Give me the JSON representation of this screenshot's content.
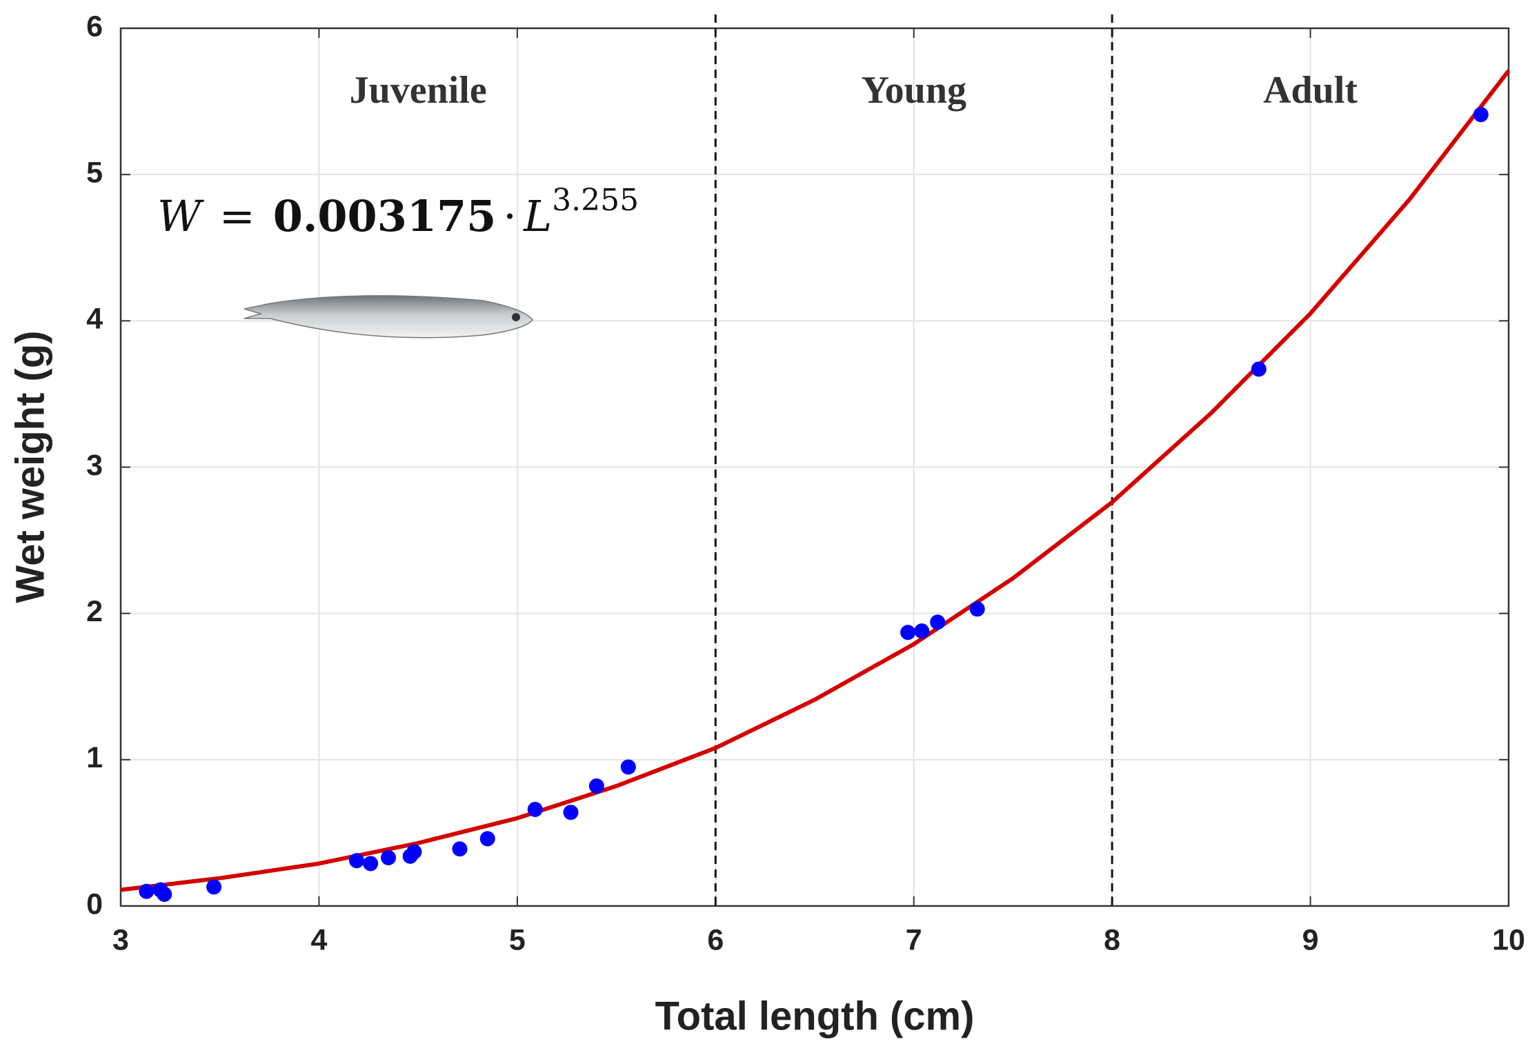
{
  "chart_data": {
    "type": "scatter",
    "x_label": "Total length (cm)",
    "y_label": "Wet weight (g)",
    "xlim": [
      3,
      10
    ],
    "xticks": [
      3,
      4,
      5,
      6,
      7,
      8,
      9,
      10
    ],
    "ylim": [
      0,
      6
    ],
    "yticks": [
      0,
      1,
      2,
      3,
      4,
      5,
      6
    ],
    "grid": true,
    "equation": {
      "lhs": "W",
      "eq": "=",
      "coef": "0.003175",
      "dot": "·",
      "var": "L",
      "exp": "3.255"
    },
    "dividers": [
      6,
      8
    ],
    "regions": [
      "Juvenile",
      "Young",
      "Adult"
    ],
    "series": [
      {
        "type": "scatter",
        "color": "#0000ff",
        "x": [
          3.13,
          3.2,
          3.22,
          3.47,
          4.19,
          4.26,
          4.35,
          4.46,
          4.48,
          4.71,
          4.85,
          5.09,
          5.27,
          5.4,
          5.56,
          6.97,
          7.04,
          7.12,
          7.32,
          8.74,
          9.86
        ],
        "values": [
          0.1,
          0.11,
          0.08,
          0.13,
          0.31,
          0.29,
          0.33,
          0.34,
          0.37,
          0.39,
          0.46,
          0.66,
          0.64,
          0.82,
          0.95,
          1.87,
          1.88,
          1.94,
          2.03,
          3.67,
          5.41
        ]
      },
      {
        "type": "line",
        "color": "#d40000",
        "x": [
          3,
          3.5,
          4,
          4.5,
          5,
          5.5,
          6,
          6.5,
          7,
          7.5,
          8,
          8.5,
          9,
          9.5,
          10
        ],
        "values": [
          0.11,
          0.19,
          0.29,
          0.43,
          0.6,
          0.82,
          1.08,
          1.41,
          1.79,
          2.24,
          2.76,
          3.37,
          4.05,
          4.83,
          5.71
        ]
      }
    ]
  }
}
